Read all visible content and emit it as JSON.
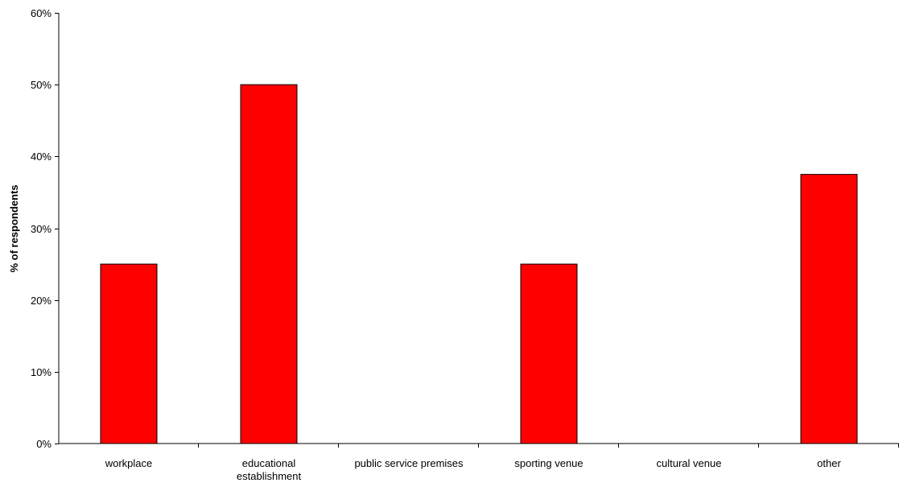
{
  "chart_data": {
    "type": "bar",
    "title": "",
    "xlabel": "",
    "ylabel": "% of respondents",
    "ylim": [
      0,
      60
    ],
    "yticks": [
      0,
      10,
      20,
      30,
      40,
      50,
      60
    ],
    "ytick_labels": [
      "0%",
      "10%",
      "20%",
      "30%",
      "40%",
      "50%",
      "60%"
    ],
    "categories": [
      [
        "workplace"
      ],
      [
        "educational",
        "establishment"
      ],
      [
        "public service premises"
      ],
      [
        "sporting venue"
      ],
      [
        "cultural venue"
      ],
      [
        "other"
      ]
    ],
    "values": [
      25,
      50,
      0,
      25,
      0,
      37.5
    ],
    "grid": false,
    "legend": "none",
    "bar_color": "#FF0000",
    "bar_edge_color": "#000000"
  }
}
